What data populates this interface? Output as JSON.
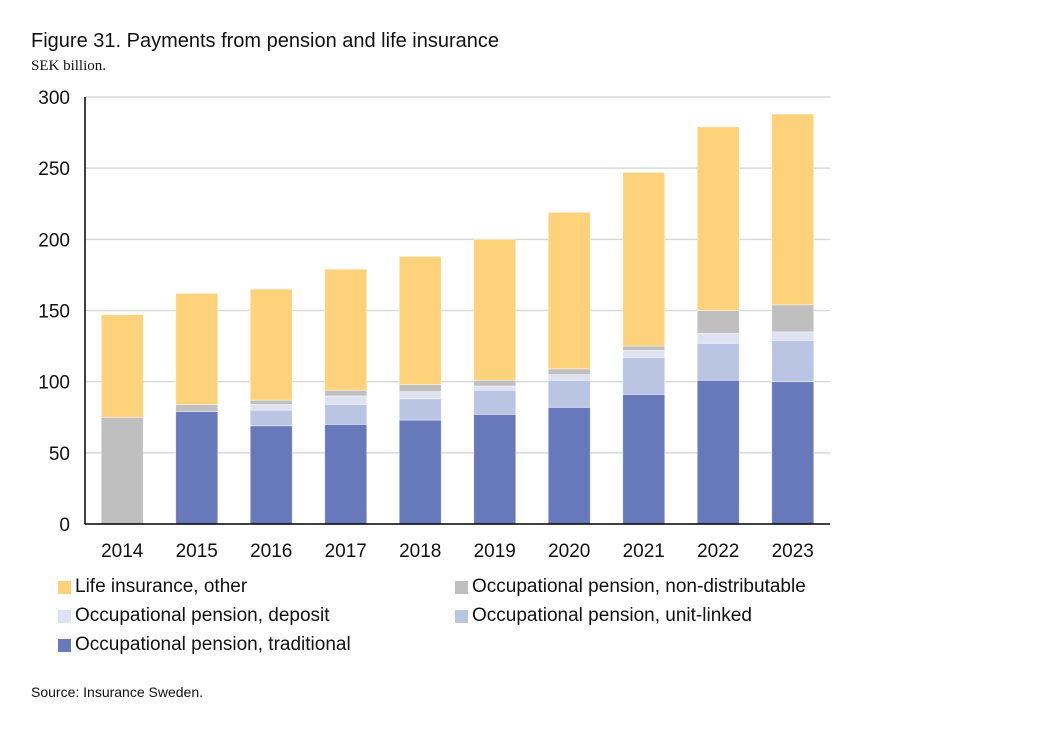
{
  "chart_data": {
    "type": "bar",
    "stacked": true,
    "title": "Figure 31. Payments from pension and life insurance",
    "subtitle": "SEK billion.",
    "source": "Source: Insurance Sweden.",
    "categories": [
      "2014",
      "2015",
      "2016",
      "2017",
      "2018",
      "2019",
      "2020",
      "2021",
      "2022",
      "2023"
    ],
    "ylim": [
      0,
      300
    ],
    "yticks": [
      0,
      50,
      100,
      150,
      200,
      250,
      300
    ],
    "grid": true,
    "legend_position": "bottom",
    "series": [
      {
        "name": "Occupational pension, traditional",
        "color": "#6779ba",
        "values": [
          0,
          79,
          69,
          70,
          73,
          77,
          82,
          91,
          101,
          100
        ]
      },
      {
        "name": "Occupational pension, unit-linked",
        "color": "#bac5e3",
        "values": [
          0,
          0,
          11,
          14,
          15,
          17,
          19,
          26,
          26,
          29
        ]
      },
      {
        "name": "Occupational pension, deposit",
        "color": "#dfe3f1",
        "values": [
          0,
          0,
          4,
          6,
          5,
          3,
          4,
          5,
          7,
          6
        ]
      },
      {
        "name": "Occupational pension, non-distributable",
        "color": "#bfbfbf",
        "values": [
          75,
          5,
          3,
          4,
          5,
          4,
          4,
          3,
          16,
          19
        ]
      },
      {
        "name": "Life insurance, other",
        "color": "#fed27a",
        "values": [
          72,
          78,
          78,
          85,
          90,
          99,
          110,
          122,
          129,
          134
        ]
      }
    ],
    "legend_order": [
      4,
      3,
      2,
      1,
      0
    ]
  }
}
